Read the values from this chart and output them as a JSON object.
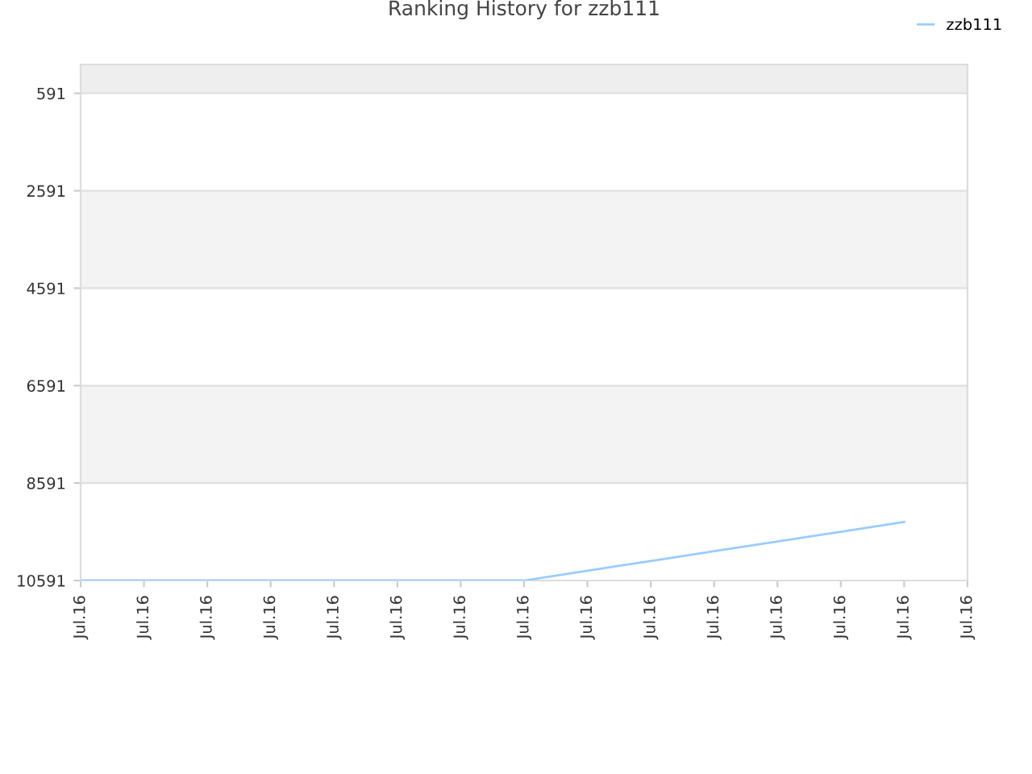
{
  "chart_data": {
    "type": "line",
    "title": "Ranking History for zzb111",
    "categories": [
      "Jul.16",
      "Jul.16",
      "Jul.16",
      "Jul.16",
      "Jul.16",
      "Jul.16",
      "Jul.16",
      "Jul.16",
      "Jul.16",
      "Jul.16",
      "Jul.16",
      "Jul.16",
      "Jul.16",
      "Jul.16",
      "Jul.16"
    ],
    "series": [
      {
        "name": "zzb111",
        "color": "#99ccff",
        "values": [
          10591,
          10591,
          10591,
          10591,
          10591,
          10591,
          10591,
          10591,
          10390,
          10190,
          9990,
          9790,
          9590,
          9390,
          null
        ]
      }
    ],
    "ylim": [
      10591,
      0
    ],
    "yticks": [
      591,
      2591,
      4591,
      6591,
      8591,
      10591
    ],
    "bands": [
      {
        "axis": "y",
        "from": 0,
        "to": 591,
        "color": "#eeeeee"
      },
      {
        "axis": "y",
        "from": 2591,
        "to": 4591,
        "color": "#f3f3f3"
      },
      {
        "axis": "y",
        "from": 6591,
        "to": 8591,
        "color": "#f3f3f3"
      }
    ],
    "grid": "y",
    "legend": "top right",
    "marker": "none",
    "line_style": "solid"
  }
}
